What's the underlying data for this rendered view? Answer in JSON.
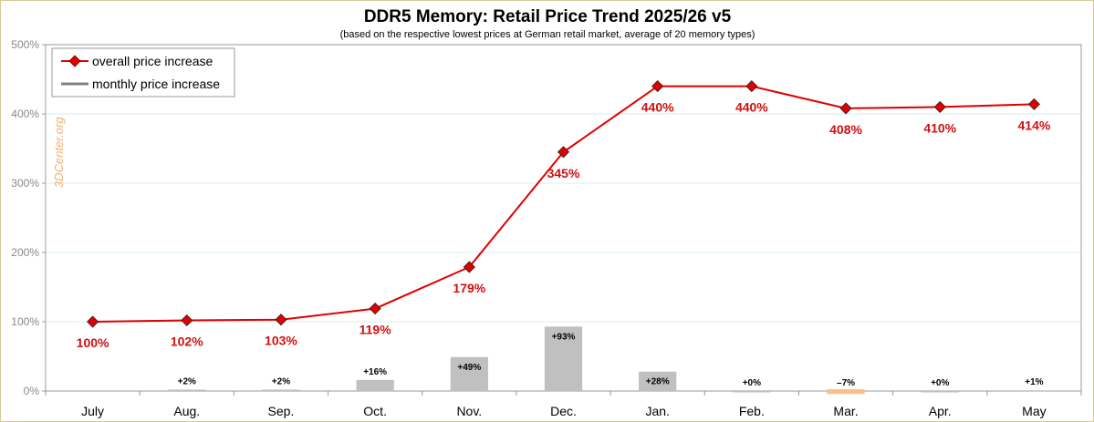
{
  "chart_data": {
    "type": "line",
    "title": "DDR5 Memory: Retail Price Trend 2025/26 v5",
    "subtitle": "(based on the respective lowest prices at German retail market, average of 20 memory types)",
    "watermark": "3DCenter.org",
    "categories": [
      "July",
      "Aug.",
      "Sep.",
      "Oct.",
      "Nov.",
      "Dec.",
      "Jan.",
      "Feb.",
      "Mar.",
      "Apr.",
      "May"
    ],
    "yticks": [
      "0%",
      "100%",
      "200%",
      "300%",
      "400%",
      "500%"
    ],
    "ylim": [
      0,
      500
    ],
    "grid": true,
    "legend_position": "top-left",
    "series": [
      {
        "name": "overall price increase",
        "chart": "line",
        "color": "#e00000",
        "values": [
          100,
          102,
          103,
          119,
          179,
          345,
          440,
          440,
          408,
          410,
          414
        ],
        "labels": [
          "100%",
          "102%",
          "103%",
          "119%",
          "179%",
          "345%",
          "440%",
          "440%",
          "408%",
          "410%",
          "414%"
        ]
      },
      {
        "name": "monthly price increase",
        "chart": "bar",
        "color": "#c0c0c0",
        "negative_color": "#f8c090",
        "values": [
          null,
          2,
          2,
          16,
          49,
          93,
          28,
          0,
          -7,
          0,
          1
        ],
        "labels": [
          "",
          "+2%",
          "+2%",
          "+16%",
          "+49%",
          "+93%",
          "+28%",
          "+0%",
          "–7%",
          "+0%",
          "+1%"
        ]
      }
    ]
  }
}
